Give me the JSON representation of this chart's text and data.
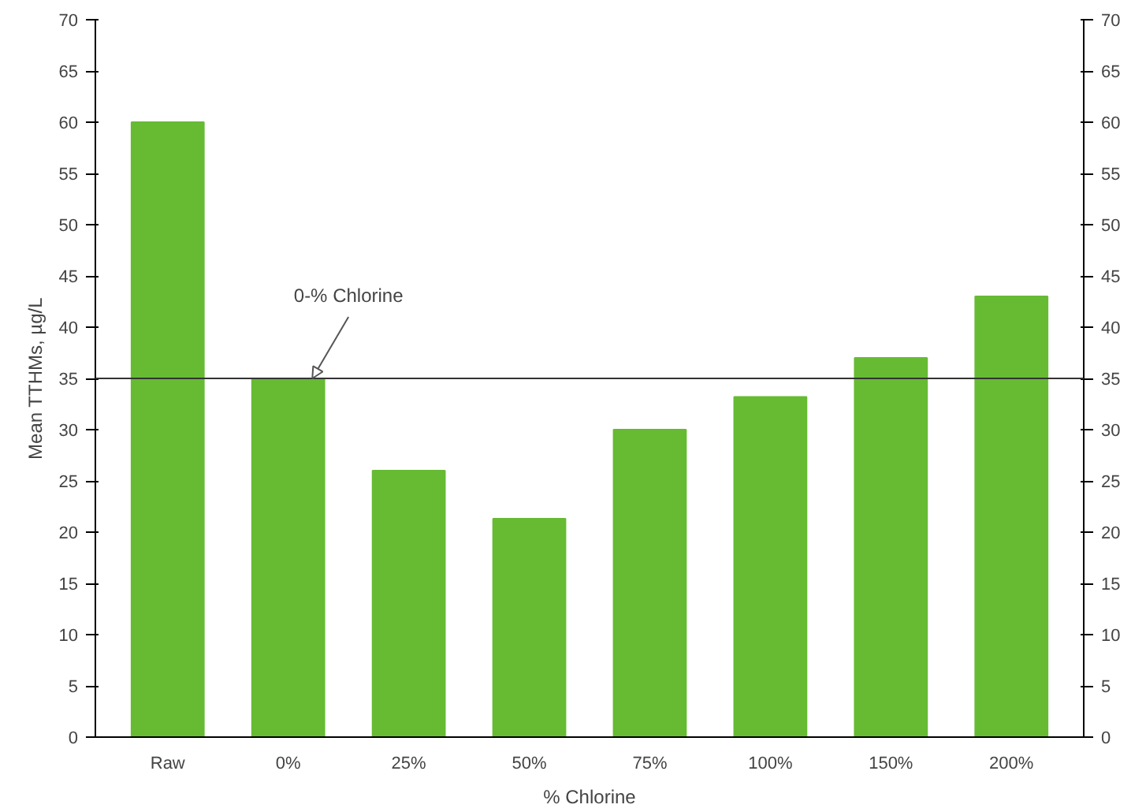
{
  "chart_data": {
    "type": "bar",
    "xlabel": "% Chlorine",
    "ylabel": "Mean TTHMs, µg/L",
    "categories": [
      "Raw",
      "0%",
      "25%",
      "50%",
      "75%",
      "100%",
      "150%",
      "200%"
    ],
    "values": [
      60,
      35,
      26,
      21.3,
      30,
      33.2,
      37,
      43
    ],
    "color": "#66bb33",
    "ylim": [
      0,
      70
    ],
    "yticks": [
      0,
      5,
      10,
      15,
      20,
      25,
      30,
      35,
      40,
      45,
      50,
      55,
      60,
      65,
      70
    ],
    "y2lim": [
      0,
      70
    ],
    "y2ticks": [
      0,
      5,
      10,
      15,
      20,
      25,
      30,
      35,
      40,
      45,
      50,
      55,
      60,
      65,
      70
    ],
    "ref_lines": [
      {
        "axis": "y",
        "value": 35,
        "label": "0-% Chlorine",
        "color": "#333333"
      }
    ],
    "grid": false
  }
}
